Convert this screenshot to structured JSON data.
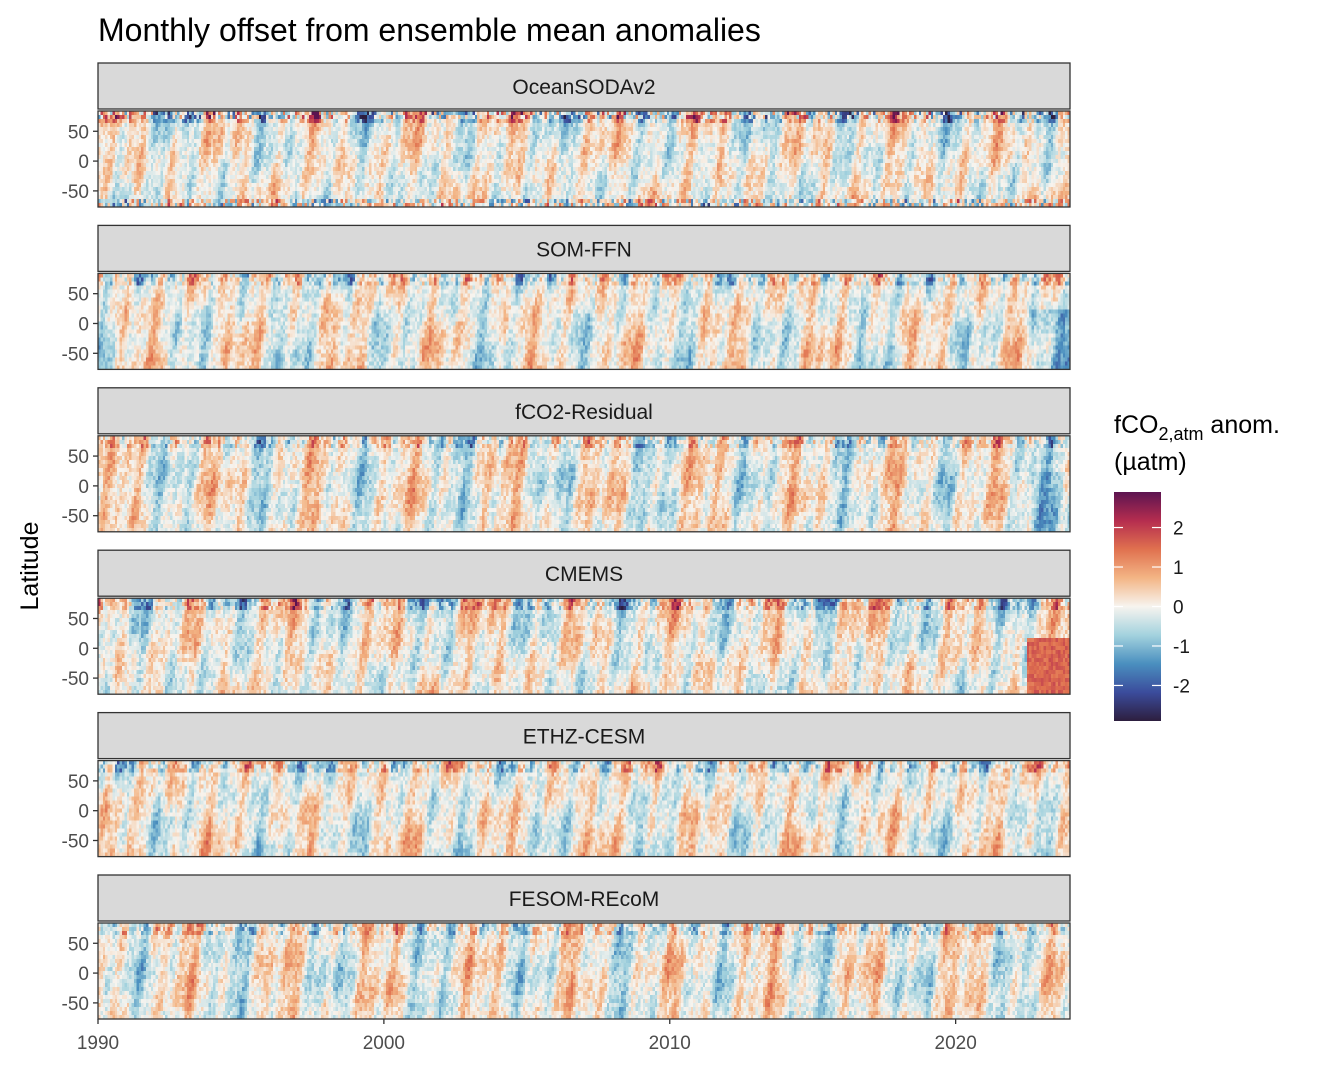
{
  "chart_data": {
    "type": "heatmap",
    "title": "Monthly offset from ensemble mean anomalies",
    "ylabel": "Latitude",
    "xlabel": "",
    "xlim": [
      1990,
      2024
    ],
    "ylim": [
      -77,
      84
    ],
    "x_ticks": [
      "1990",
      "2000",
      "2010",
      "2020"
    ],
    "x_tick_values": [
      1990,
      2000,
      2010,
      2020
    ],
    "y_ticks": [
      "50",
      "0",
      "-50"
    ],
    "y_tick_values": [
      50,
      0,
      -50
    ],
    "panels": [
      {
        "name": "OceanSODAv2"
      },
      {
        "name": "SOM-FFN"
      },
      {
        "name": "fCO2-Residual"
      },
      {
        "name": "CMEMS"
      },
      {
        "name": "ETHZ-CESM"
      },
      {
        "name": "FESOM-REcoM"
      }
    ],
    "legend": {
      "title_main": "fCO",
      "title_sub": "2,atm",
      "title_rest": " anom.",
      "title_line2": "(µatm)",
      "placement": "right",
      "range": [
        -2.9,
        2.9
      ],
      "ticks": [
        2,
        1,
        0,
        -1,
        -2
      ],
      "tick_labels": [
        "2",
        "1",
        "0",
        "-1",
        "-2"
      ],
      "colors": [
        "#2d1e3e",
        "#3b4c9c",
        "#4a8fbf",
        "#a3d2de",
        "#f7f4ef",
        "#f3b585",
        "#e0714f",
        "#b52d4f",
        "#5c1450"
      ]
    }
  }
}
